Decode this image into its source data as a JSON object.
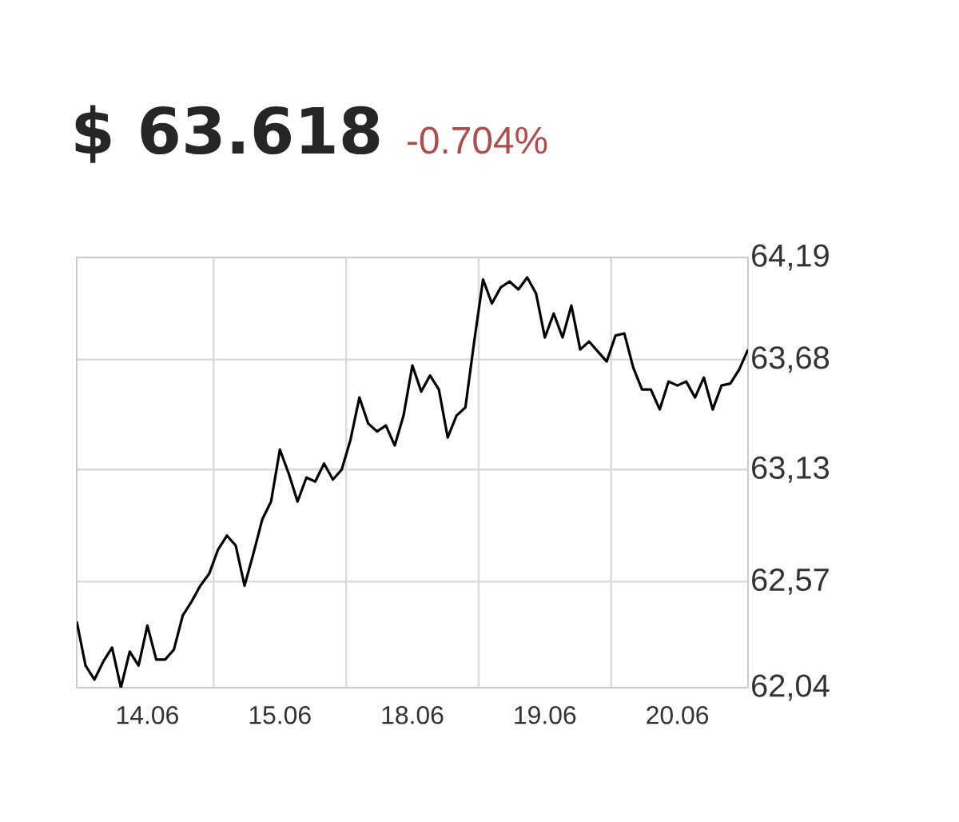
{
  "chart_data": {
    "type": "line",
    "title": "$ 63.618",
    "subtitle": "-0.704%",
    "categories": [
      null,
      null,
      null,
      null,
      null,
      null,
      null,
      null,
      "14.06",
      null,
      null,
      null,
      null,
      null,
      null,
      null,
      null,
      null,
      null,
      null,
      null,
      null,
      null,
      "15.06",
      null,
      null,
      null,
      null,
      null,
      null,
      null,
      null,
      null,
      null,
      null,
      null,
      null,
      null,
      "18.06",
      null,
      null,
      null,
      null,
      null,
      null,
      null,
      null,
      null,
      null,
      null,
      null,
      null,
      null,
      "19.06",
      null,
      null,
      null,
      null,
      null,
      null,
      null,
      null,
      null,
      null,
      null,
      null,
      null,
      null,
      "20.06",
      null,
      null,
      null,
      null,
      null,
      null,
      null,
      null
    ],
    "ylim": [
      62.04,
      64.19
    ],
    "yticks": [
      {
        "value": 62.04,
        "label": "62,04"
      },
      {
        "value": 62.57,
        "label": "62,57"
      },
      {
        "value": 63.13,
        "label": "63,13"
      },
      {
        "value": 63.68,
        "label": "63,68"
      },
      {
        "value": 64.19,
        "label": "64,19"
      }
    ],
    "grid": true,
    "marker": "none",
    "line_style": "solid",
    "series": [
      {
        "color": "#000000",
        "values": [
          62.37,
          62.15,
          62.08,
          62.17,
          62.24,
          62.04,
          62.22,
          62.15,
          62.35,
          62.18,
          62.18,
          62.23,
          62.4,
          62.47,
          62.55,
          62.61,
          62.73,
          62.8,
          62.75,
          62.55,
          62.71,
          62.88,
          62.97,
          63.23,
          63.11,
          62.97,
          63.09,
          63.07,
          63.16,
          63.08,
          63.13,
          63.28,
          63.49,
          63.36,
          63.32,
          63.35,
          63.25,
          63.4,
          63.65,
          63.52,
          63.6,
          63.53,
          63.29,
          63.4,
          63.44,
          63.77,
          64.08,
          63.96,
          64.04,
          64.07,
          64.03,
          64.09,
          64.01,
          63.79,
          63.91,
          63.79,
          63.95,
          63.73,
          63.77,
          63.72,
          63.67,
          63.8,
          63.81,
          63.64,
          63.53,
          63.53,
          63.43,
          63.57,
          63.55,
          63.57,
          63.49,
          63.59,
          63.43,
          63.55,
          63.56,
          63.63,
          63.73
        ]
      }
    ]
  }
}
